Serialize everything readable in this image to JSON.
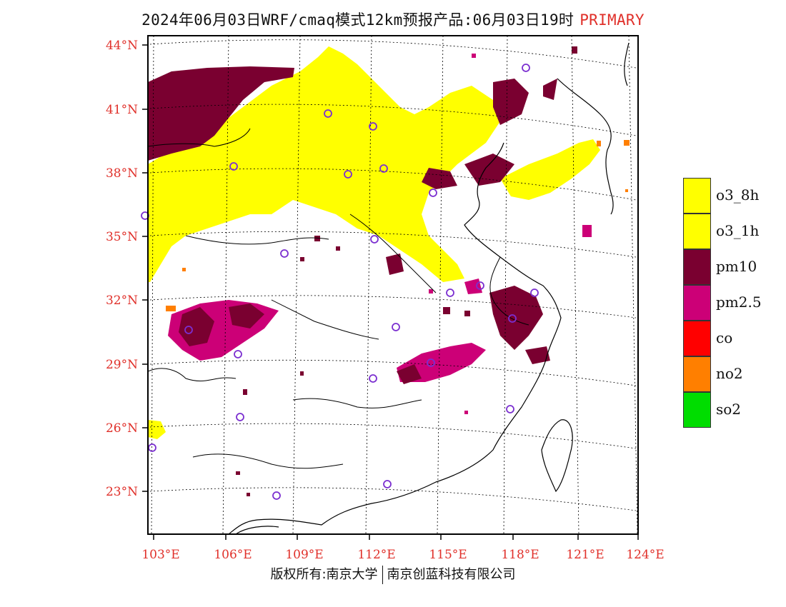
{
  "title": {
    "text": "2024年06月03日WRF/cmaq模式12km预报产品:06月03日19时",
    "tag": "PRIMARY"
  },
  "map": {
    "lat_labels": [
      "44°N",
      "41°N",
      "38°N",
      "35°N",
      "32°N",
      "29°N",
      "26°N",
      "23°N"
    ],
    "lon_labels": [
      "103°E",
      "106°E",
      "109°E",
      "112°E",
      "115°E",
      "118°E",
      "121°E",
      "124°E"
    ]
  },
  "legend": [
    {
      "label": "o3_8h",
      "color": "#ffff00"
    },
    {
      "label": "o3_1h",
      "color": "#ffff00"
    },
    {
      "label": "pm10",
      "color": "#7a0030"
    },
    {
      "label": "pm2.5",
      "color": "#cc0077"
    },
    {
      "label": "co",
      "color": "#ff0000"
    },
    {
      "label": "no2",
      "color": "#ff7f00"
    },
    {
      "label": "so2",
      "color": "#00dd00"
    }
  ],
  "credit": {
    "left": "版权所有:南京大学",
    "right": "南京创蓝科技有限公司"
  },
  "colors": {
    "axis_label": "#e0302a",
    "station_marker": "#7b2fd0"
  }
}
